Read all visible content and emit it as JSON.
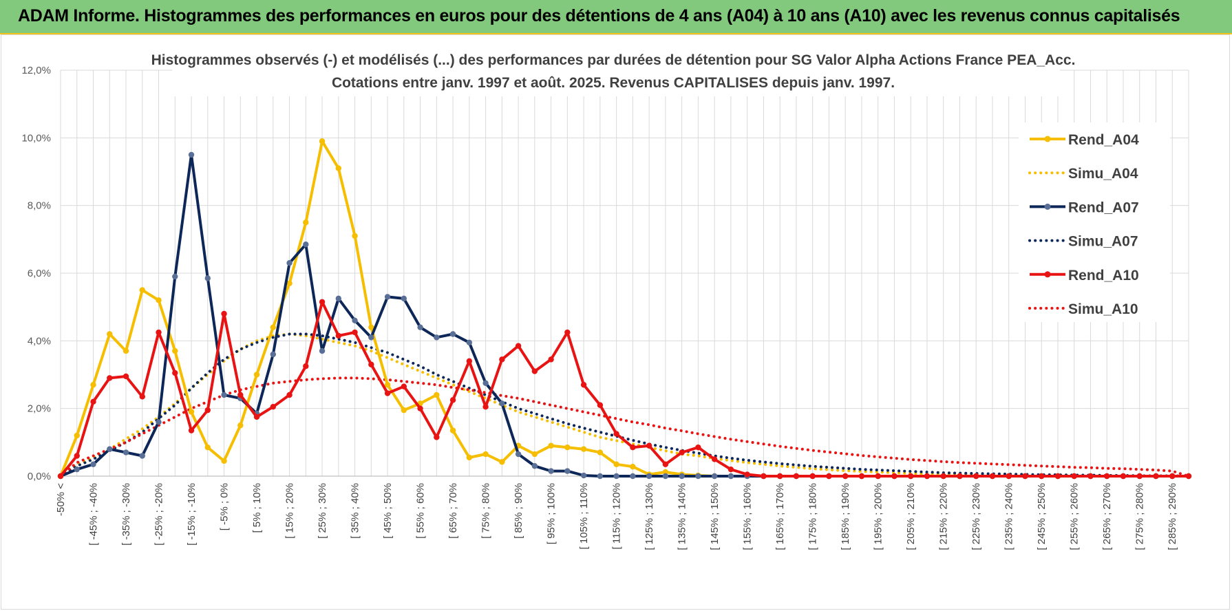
{
  "banner": {
    "title": "ADAM Informe. Histogrammes des performances en euros pour des détentions de 4 ans (A04) à 10 ans (A10) avec les revenus connus capitalisés"
  },
  "colors": {
    "banner_bg": "#82c97d",
    "banner_accent": "#f2c21a",
    "yellow": "#f5be00",
    "navy": "#0d2758",
    "red": "#e81414",
    "grid": "#d9d9d9"
  },
  "chart_data": {
    "type": "line",
    "title": "Histogrammes observés (-) et modélisés (...) des performances par durées de détention pour SG Valor Alpha Actions France PEA_Acc.",
    "subtitle": "Cotations entre janv. 1997 et août. 2025. Revenus CAPITALISES depuis janv. 1997.",
    "xlabel": "",
    "ylabel": "",
    "ylim": [
      0,
      12
    ],
    "y_ticks": [
      "0,0%",
      "2,0%",
      "4,0%",
      "6,0%",
      "8,0%",
      "10,0%",
      "12,0%"
    ],
    "grid": true,
    "legend_position": "right",
    "x_tick_labels": [
      "-50% <",
      "[ -45% ; -40%",
      "[ -35% ; -30%",
      "[ -25% ; -20%",
      "[ -15% ; -10%",
      "[ -5% ; 0%",
      "[ 5% ; 10%",
      "[ 15% ; 20%",
      "[ 25% ; 30%",
      "[ 35% ; 40%",
      "[ 45% ; 50%",
      "[ 55% ; 60%",
      "[ 65% ; 70%",
      "[ 75% ; 80%",
      "[ 85% ; 90%",
      "[ 95% ; 100%",
      "[ 105% ; 110%",
      "[ 115% ; 120%",
      "[ 125% ; 130%",
      "[ 135% ; 140%",
      "[ 145% ; 150%",
      "[ 155% ; 160%",
      "[ 165% ; 170%",
      "[ 175% ; 180%",
      "[ 185% ; 190%",
      "[ 195% ; 200%",
      "[ 205% ; 210%",
      "[ 215% ; 220%",
      "[ 225% ; 230%",
      "[ 235% ; 240%",
      "[ 245% ; 250%",
      "[ 255% ; 260%",
      "[ 265% ; 270%",
      "[ 275% ; 280%",
      "[ 285% ; 290%"
    ],
    "series": [
      {
        "name": "Rend_A04",
        "style": "solid",
        "color": "#f5be00",
        "values": [
          0.0,
          1.2,
          2.7,
          4.2,
          3.7,
          5.5,
          5.2,
          3.7,
          1.9,
          0.85,
          0.45,
          1.5,
          3.0,
          4.4,
          5.7,
          7.5,
          9.9,
          9.1,
          7.1,
          4.4,
          2.7,
          1.95,
          2.15,
          2.4,
          1.35,
          0.55,
          0.65,
          0.42,
          0.9,
          0.65,
          0.9,
          0.85,
          0.8,
          0.7,
          0.35,
          0.28,
          0.05,
          0.12,
          0.05,
          0.02,
          0.0,
          0.0,
          0.0,
          0.0,
          0.0,
          0.0,
          0.0,
          0.0,
          0.0,
          0.0,
          0.0,
          0.0,
          0.0,
          0.0,
          0.0,
          0.0,
          0.0,
          0.0,
          0.0,
          0.0,
          0.0,
          0.0,
          0.0,
          0.0,
          0.0,
          0.0,
          0.0,
          0.0,
          0.0,
          0.0
        ]
      },
      {
        "name": "Simu_A04",
        "style": "dotted",
        "color": "#f5be00",
        "values": [
          0.0,
          0.35,
          0.55,
          0.8,
          1.1,
          1.4,
          1.75,
          2.15,
          2.6,
          3.0,
          3.4,
          3.75,
          4.0,
          4.15,
          4.2,
          4.15,
          4.05,
          3.95,
          3.85,
          3.7,
          3.5,
          3.3,
          3.1,
          2.9,
          2.7,
          2.5,
          2.3,
          2.1,
          1.9,
          1.75,
          1.6,
          1.45,
          1.3,
          1.15,
          1.05,
          0.95,
          0.85,
          0.75,
          0.65,
          0.6,
          0.52,
          0.46,
          0.4,
          0.35,
          0.3,
          0.26,
          0.22,
          0.19,
          0.16,
          0.14,
          0.12,
          0.1,
          0.08,
          0.07,
          0.06,
          0.05,
          0.04,
          0.03,
          0.03,
          0.02,
          0.02,
          0.01,
          0.01,
          0.01,
          0.0,
          0.0,
          0.0,
          0.0,
          0.0,
          0.0
        ]
      },
      {
        "name": "Rend_A07",
        "style": "solid",
        "color": "#0d2758",
        "values": [
          0.0,
          0.2,
          0.35,
          0.8,
          0.7,
          0.6,
          1.6,
          5.9,
          9.5,
          5.85,
          2.4,
          2.3,
          1.85,
          3.6,
          6.3,
          6.85,
          3.7,
          5.25,
          4.6,
          4.1,
          5.3,
          5.25,
          4.4,
          4.1,
          4.2,
          3.95,
          2.75,
          2.15,
          0.65,
          0.3,
          0.15,
          0.15,
          0.02,
          0.0,
          0.0,
          0.0,
          0.0,
          0.0,
          0.0,
          0.0,
          0.0,
          0.0,
          0.0,
          0.0,
          0.0,
          0.0,
          0.0,
          0.0,
          0.0,
          0.0,
          0.0,
          0.0,
          0.0,
          0.0,
          0.0,
          0.0,
          0.0,
          0.0,
          0.0,
          0.0,
          0.0,
          0.0,
          0.0,
          0.0,
          0.0,
          0.0,
          0.0,
          0.0,
          0.0,
          0.0
        ]
      },
      {
        "name": "Simu_A07",
        "style": "dotted",
        "color": "#0d2758",
        "values": [
          0.0,
          0.3,
          0.5,
          0.75,
          1.0,
          1.3,
          1.7,
          2.1,
          2.6,
          3.05,
          3.45,
          3.75,
          3.95,
          4.1,
          4.2,
          4.2,
          4.15,
          4.05,
          3.95,
          3.8,
          3.65,
          3.45,
          3.25,
          3.0,
          2.8,
          2.6,
          2.4,
          2.2,
          2.0,
          1.85,
          1.7,
          1.55,
          1.42,
          1.3,
          1.18,
          1.06,
          0.95,
          0.85,
          0.76,
          0.68,
          0.6,
          0.53,
          0.47,
          0.42,
          0.37,
          0.33,
          0.29,
          0.26,
          0.23,
          0.2,
          0.18,
          0.16,
          0.14,
          0.12,
          0.1,
          0.09,
          0.08,
          0.07,
          0.06,
          0.05,
          0.04,
          0.04,
          0.03,
          0.03,
          0.02,
          0.02,
          0.01,
          0.01,
          0.01,
          0.0
        ]
      },
      {
        "name": "Rend_A10",
        "style": "solid",
        "color": "#e81414",
        "values": [
          0.0,
          0.6,
          2.2,
          2.9,
          2.95,
          2.35,
          4.25,
          3.05,
          1.35,
          1.95,
          4.8,
          2.4,
          1.75,
          2.05,
          2.4,
          3.25,
          5.15,
          4.15,
          4.25,
          3.3,
          2.45,
          2.65,
          2.0,
          1.15,
          2.25,
          3.4,
          2.05,
          3.45,
          3.85,
          3.1,
          3.45,
          4.25,
          2.7,
          2.1,
          1.25,
          0.85,
          0.9,
          0.35,
          0.7,
          0.85,
          0.5,
          0.2,
          0.05,
          0.0,
          0.0,
          0.0,
          0.0,
          0.0,
          0.0,
          0.0,
          0.0,
          0.0,
          0.0,
          0.0,
          0.0,
          0.0,
          0.0,
          0.0,
          0.0,
          0.0,
          0.0,
          0.0,
          0.0,
          0.0,
          0.0,
          0.0,
          0.0,
          0.0,
          0.0,
          0.0
        ]
      },
      {
        "name": "Simu_A10",
        "style": "dotted",
        "color": "#e81414",
        "values": [
          0.0,
          0.4,
          0.6,
          0.8,
          1.0,
          1.25,
          1.5,
          1.75,
          2.0,
          2.2,
          2.4,
          2.55,
          2.65,
          2.75,
          2.8,
          2.85,
          2.88,
          2.9,
          2.9,
          2.88,
          2.85,
          2.8,
          2.75,
          2.7,
          2.62,
          2.55,
          2.47,
          2.38,
          2.3,
          2.2,
          2.1,
          2.0,
          1.9,
          1.8,
          1.7,
          1.6,
          1.52,
          1.42,
          1.34,
          1.25,
          1.17,
          1.09,
          1.02,
          0.95,
          0.88,
          0.82,
          0.76,
          0.71,
          0.66,
          0.61,
          0.57,
          0.53,
          0.49,
          0.46,
          0.43,
          0.4,
          0.38,
          0.36,
          0.34,
          0.32,
          0.3,
          0.28,
          0.26,
          0.25,
          0.23,
          0.22,
          0.2,
          0.18,
          0.15,
          0.0
        ]
      }
    ]
  }
}
